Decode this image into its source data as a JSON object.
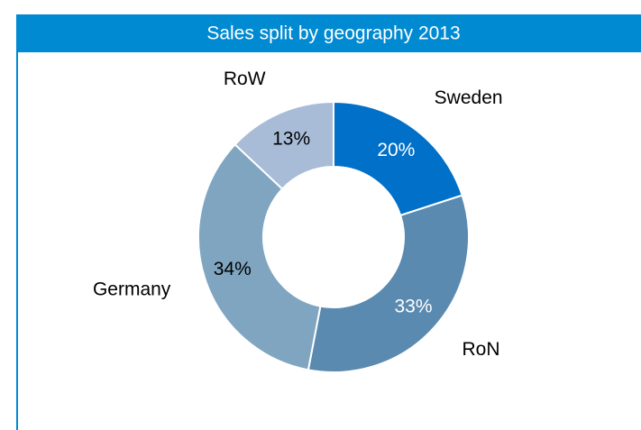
{
  "chart_data": {
    "type": "donut",
    "title": "Sales split by geography 2013",
    "categories": [
      "Sweden",
      "RoN",
      "Germany",
      "RoW"
    ],
    "values": [
      20,
      33,
      34,
      13
    ],
    "value_labels": [
      "20%",
      "33%",
      "34%",
      "13%"
    ],
    "colors": [
      "#0070c8",
      "#5a8ab0",
      "#7fa5c0",
      "#a8bcd8"
    ]
  }
}
